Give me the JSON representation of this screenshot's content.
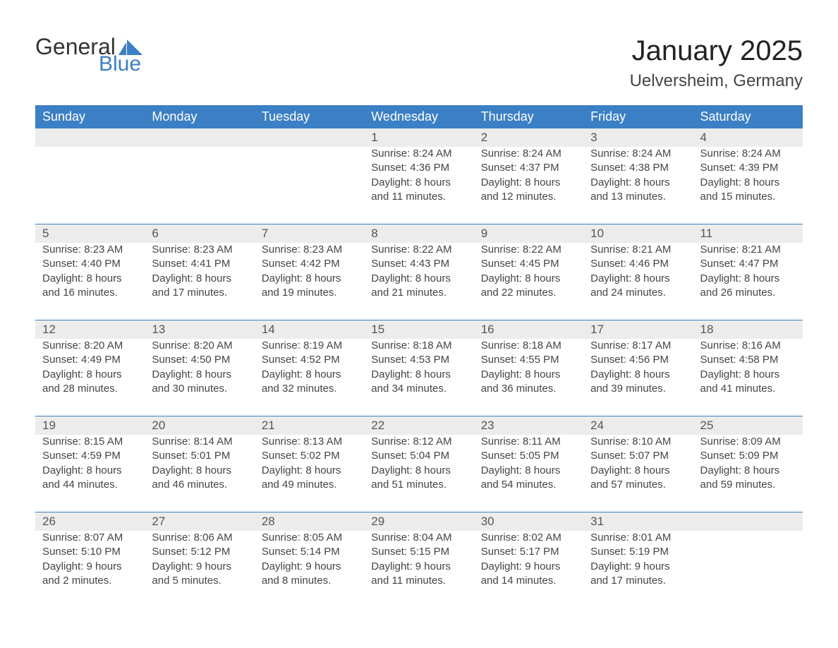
{
  "brand": {
    "word1": "General",
    "word2": "Blue",
    "color": "#3b7fc4"
  },
  "title": "January 2025",
  "location": "Uelversheim, Germany",
  "columns": [
    "Sunday",
    "Monday",
    "Tuesday",
    "Wednesday",
    "Thursday",
    "Friday",
    "Saturday"
  ],
  "style": {
    "header_bg": "#3b7fc4",
    "header_text": "#ffffff",
    "row_stripe": "#ececec",
    "divider": "#3b7fc4",
    "background": "#ffffff",
    "body_text": "#444444",
    "title_fontsize": 40,
    "location_fontsize": 24,
    "dayhead_fontsize": 18,
    "cell_fontsize": 15,
    "daynum_fontsize": 17
  },
  "weeks": [
    [
      null,
      null,
      null,
      {
        "n": "1",
        "sr": "Sunrise: 8:24 AM",
        "ss": "Sunset: 4:36 PM",
        "d1": "Daylight: 8 hours",
        "d2": "and 11 minutes."
      },
      {
        "n": "2",
        "sr": "Sunrise: 8:24 AM",
        "ss": "Sunset: 4:37 PM",
        "d1": "Daylight: 8 hours",
        "d2": "and 12 minutes."
      },
      {
        "n": "3",
        "sr": "Sunrise: 8:24 AM",
        "ss": "Sunset: 4:38 PM",
        "d1": "Daylight: 8 hours",
        "d2": "and 13 minutes."
      },
      {
        "n": "4",
        "sr": "Sunrise: 8:24 AM",
        "ss": "Sunset: 4:39 PM",
        "d1": "Daylight: 8 hours",
        "d2": "and 15 minutes."
      }
    ],
    [
      {
        "n": "5",
        "sr": "Sunrise: 8:23 AM",
        "ss": "Sunset: 4:40 PM",
        "d1": "Daylight: 8 hours",
        "d2": "and 16 minutes."
      },
      {
        "n": "6",
        "sr": "Sunrise: 8:23 AM",
        "ss": "Sunset: 4:41 PM",
        "d1": "Daylight: 8 hours",
        "d2": "and 17 minutes."
      },
      {
        "n": "7",
        "sr": "Sunrise: 8:23 AM",
        "ss": "Sunset: 4:42 PM",
        "d1": "Daylight: 8 hours",
        "d2": "and 19 minutes."
      },
      {
        "n": "8",
        "sr": "Sunrise: 8:22 AM",
        "ss": "Sunset: 4:43 PM",
        "d1": "Daylight: 8 hours",
        "d2": "and 21 minutes."
      },
      {
        "n": "9",
        "sr": "Sunrise: 8:22 AM",
        "ss": "Sunset: 4:45 PM",
        "d1": "Daylight: 8 hours",
        "d2": "and 22 minutes."
      },
      {
        "n": "10",
        "sr": "Sunrise: 8:21 AM",
        "ss": "Sunset: 4:46 PM",
        "d1": "Daylight: 8 hours",
        "d2": "and 24 minutes."
      },
      {
        "n": "11",
        "sr": "Sunrise: 8:21 AM",
        "ss": "Sunset: 4:47 PM",
        "d1": "Daylight: 8 hours",
        "d2": "and 26 minutes."
      }
    ],
    [
      {
        "n": "12",
        "sr": "Sunrise: 8:20 AM",
        "ss": "Sunset: 4:49 PM",
        "d1": "Daylight: 8 hours",
        "d2": "and 28 minutes."
      },
      {
        "n": "13",
        "sr": "Sunrise: 8:20 AM",
        "ss": "Sunset: 4:50 PM",
        "d1": "Daylight: 8 hours",
        "d2": "and 30 minutes."
      },
      {
        "n": "14",
        "sr": "Sunrise: 8:19 AM",
        "ss": "Sunset: 4:52 PM",
        "d1": "Daylight: 8 hours",
        "d2": "and 32 minutes."
      },
      {
        "n": "15",
        "sr": "Sunrise: 8:18 AM",
        "ss": "Sunset: 4:53 PM",
        "d1": "Daylight: 8 hours",
        "d2": "and 34 minutes."
      },
      {
        "n": "16",
        "sr": "Sunrise: 8:18 AM",
        "ss": "Sunset: 4:55 PM",
        "d1": "Daylight: 8 hours",
        "d2": "and 36 minutes."
      },
      {
        "n": "17",
        "sr": "Sunrise: 8:17 AM",
        "ss": "Sunset: 4:56 PM",
        "d1": "Daylight: 8 hours",
        "d2": "and 39 minutes."
      },
      {
        "n": "18",
        "sr": "Sunrise: 8:16 AM",
        "ss": "Sunset: 4:58 PM",
        "d1": "Daylight: 8 hours",
        "d2": "and 41 minutes."
      }
    ],
    [
      {
        "n": "19",
        "sr": "Sunrise: 8:15 AM",
        "ss": "Sunset: 4:59 PM",
        "d1": "Daylight: 8 hours",
        "d2": "and 44 minutes."
      },
      {
        "n": "20",
        "sr": "Sunrise: 8:14 AM",
        "ss": "Sunset: 5:01 PM",
        "d1": "Daylight: 8 hours",
        "d2": "and 46 minutes."
      },
      {
        "n": "21",
        "sr": "Sunrise: 8:13 AM",
        "ss": "Sunset: 5:02 PM",
        "d1": "Daylight: 8 hours",
        "d2": "and 49 minutes."
      },
      {
        "n": "22",
        "sr": "Sunrise: 8:12 AM",
        "ss": "Sunset: 5:04 PM",
        "d1": "Daylight: 8 hours",
        "d2": "and 51 minutes."
      },
      {
        "n": "23",
        "sr": "Sunrise: 8:11 AM",
        "ss": "Sunset: 5:05 PM",
        "d1": "Daylight: 8 hours",
        "d2": "and 54 minutes."
      },
      {
        "n": "24",
        "sr": "Sunrise: 8:10 AM",
        "ss": "Sunset: 5:07 PM",
        "d1": "Daylight: 8 hours",
        "d2": "and 57 minutes."
      },
      {
        "n": "25",
        "sr": "Sunrise: 8:09 AM",
        "ss": "Sunset: 5:09 PM",
        "d1": "Daylight: 8 hours",
        "d2": "and 59 minutes."
      }
    ],
    [
      {
        "n": "26",
        "sr": "Sunrise: 8:07 AM",
        "ss": "Sunset: 5:10 PM",
        "d1": "Daylight: 9 hours",
        "d2": "and 2 minutes."
      },
      {
        "n": "27",
        "sr": "Sunrise: 8:06 AM",
        "ss": "Sunset: 5:12 PM",
        "d1": "Daylight: 9 hours",
        "d2": "and 5 minutes."
      },
      {
        "n": "28",
        "sr": "Sunrise: 8:05 AM",
        "ss": "Sunset: 5:14 PM",
        "d1": "Daylight: 9 hours",
        "d2": "and 8 minutes."
      },
      {
        "n": "29",
        "sr": "Sunrise: 8:04 AM",
        "ss": "Sunset: 5:15 PM",
        "d1": "Daylight: 9 hours",
        "d2": "and 11 minutes."
      },
      {
        "n": "30",
        "sr": "Sunrise: 8:02 AM",
        "ss": "Sunset: 5:17 PM",
        "d1": "Daylight: 9 hours",
        "d2": "and 14 minutes."
      },
      {
        "n": "31",
        "sr": "Sunrise: 8:01 AM",
        "ss": "Sunset: 5:19 PM",
        "d1": "Daylight: 9 hours",
        "d2": "and 17 minutes."
      },
      null
    ]
  ]
}
